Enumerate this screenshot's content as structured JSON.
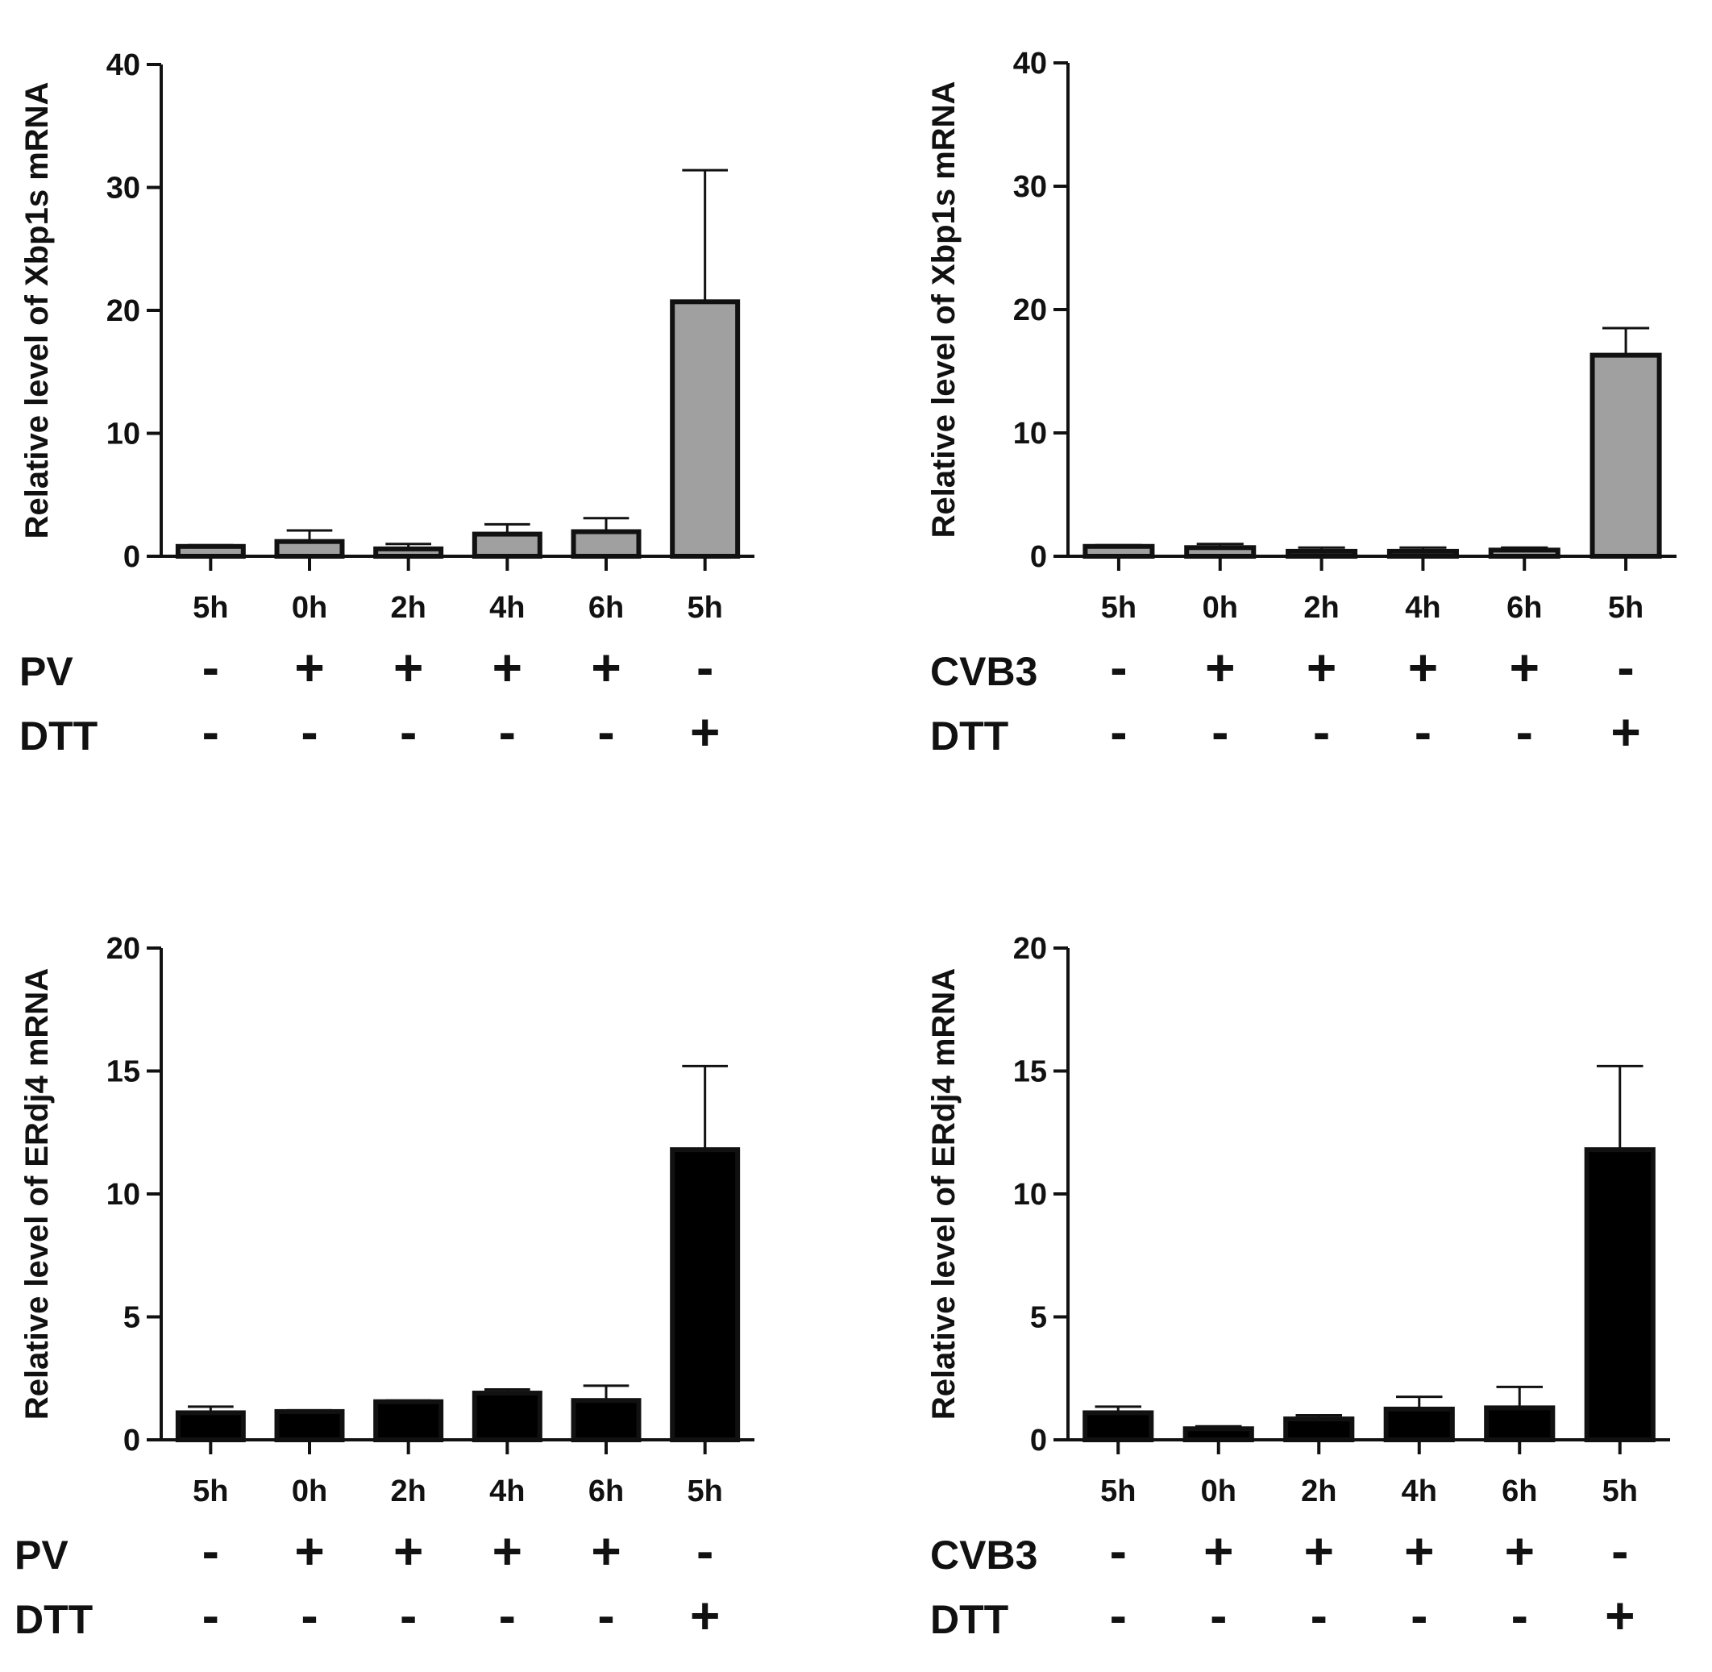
{
  "chart_data": [
    {
      "type": "bar",
      "title": "",
      "xlabel": "",
      "ylabel": "Relative level of Xbp1s mRNA",
      "ylim": [
        0,
        40
      ],
      "yticks": [
        0,
        10,
        20,
        30,
        40
      ],
      "grid": false,
      "bar_color": "#a0a0a0",
      "categories": [
        "5h",
        "0h",
        "2h",
        "4h",
        "6h",
        "5h"
      ],
      "values": [
        0.8,
        1.2,
        0.6,
        1.8,
        2.0,
        20.7
      ],
      "errors": [
        0.1,
        0.9,
        0.4,
        0.8,
        1.1,
        10.7
      ],
      "treatments": [
        {
          "name": "PV",
          "signs": [
            "-",
            "+",
            "+",
            "+",
            "+",
            "-"
          ]
        },
        {
          "name": "DTT",
          "signs": [
            "-",
            "-",
            "-",
            "-",
            "-",
            "+"
          ]
        }
      ]
    },
    {
      "type": "bar",
      "title": "",
      "xlabel": "",
      "ylabel": "Relative level of Xbp1s mRNA",
      "ylim": [
        0,
        40
      ],
      "yticks": [
        0,
        10,
        20,
        30,
        40
      ],
      "grid": false,
      "bar_color": "#a0a0a0",
      "categories": [
        "5h",
        "0h",
        "2h",
        "4h",
        "6h",
        "5h"
      ],
      "values": [
        0.8,
        0.7,
        0.4,
        0.4,
        0.5,
        16.3
      ],
      "errors": [
        0.1,
        0.3,
        0.3,
        0.3,
        0.2,
        2.2
      ],
      "treatments": [
        {
          "name": "CVB3",
          "signs": [
            "-",
            "+",
            "+",
            "+",
            "+",
            "-"
          ]
        },
        {
          "name": "DTT",
          "signs": [
            "-",
            "-",
            "-",
            "-",
            "-",
            "+"
          ]
        }
      ]
    },
    {
      "type": "bar",
      "title": "",
      "xlabel": "",
      "ylabel": "Relative level of ERdj4 mRNA",
      "ylim": [
        0,
        20
      ],
      "yticks": [
        0,
        5,
        10,
        15,
        20
      ],
      "grid": false,
      "bar_color": "#000000",
      "categories": [
        "5h",
        "0h",
        "2h",
        "4h",
        "6h",
        "5h"
      ],
      "values": [
        1.1,
        1.15,
        1.55,
        1.9,
        1.6,
        11.8
      ],
      "errors": [
        0.25,
        0.05,
        0.05,
        0.15,
        0.6,
        3.4
      ],
      "treatments": [
        {
          "name": "PV",
          "signs": [
            "-",
            "+",
            "+",
            "+",
            "+",
            "-"
          ]
        },
        {
          "name": "DTT",
          "signs": [
            "-",
            "-",
            "-",
            "-",
            "-",
            "+"
          ]
        }
      ]
    },
    {
      "type": "bar",
      "title": "",
      "xlabel": "",
      "ylabel": "Relative level of ERdj4 mRNA",
      "ylim": [
        0,
        20
      ],
      "yticks": [
        0,
        5,
        10,
        15,
        20
      ],
      "grid": false,
      "bar_color": "#000000",
      "categories": [
        "5h",
        "0h",
        "2h",
        "4h",
        "6h",
        "5h"
      ],
      "values": [
        1.1,
        0.45,
        0.85,
        1.25,
        1.3,
        11.8
      ],
      "errors": [
        0.25,
        0.1,
        0.15,
        0.5,
        0.85,
        3.4
      ],
      "treatments": [
        {
          "name": "CVB3",
          "signs": [
            "-",
            "+",
            "+",
            "+",
            "+",
            "-"
          ]
        },
        {
          "name": "DTT",
          "signs": [
            "-",
            "-",
            "-",
            "-",
            "-",
            "+"
          ]
        }
      ]
    }
  ]
}
